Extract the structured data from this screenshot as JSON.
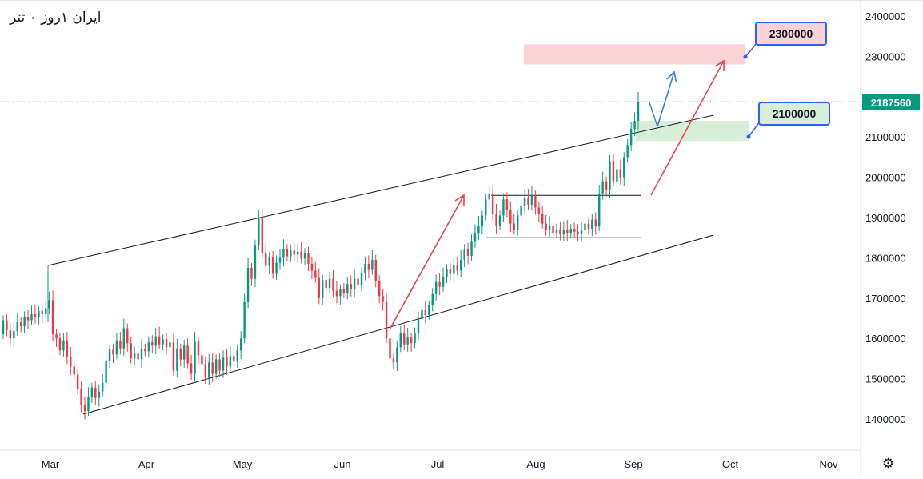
{
  "header": {
    "title": "ایران ۱روز ۰ تتر"
  },
  "price_label": "2187560",
  "callouts": {
    "target": "2300000",
    "support": "2100000"
  },
  "chart_data": {
    "type": "candlestick",
    "title": "ایران ۱روز ۰ تتر",
    "y_ticks": [
      1400000,
      1500000,
      1600000,
      1700000,
      1800000,
      1900000,
      2000000,
      2100000,
      2200000,
      2300000,
      2400000
    ],
    "y_tick_labels": [
      "1400000",
      "1500000",
      "1600000",
      "1700000",
      "1800000",
      "1900000",
      "2000000",
      "2100000",
      "2200000",
      "2300000",
      "2400000"
    ],
    "x_labels": [
      "Mar",
      "Apr",
      "May",
      "Jun",
      "Jul",
      "Aug",
      "Sep",
      "Oct",
      "Nov"
    ],
    "ylim": [
      1325000,
      2425000
    ],
    "last_price": 2187560,
    "grid": false,
    "colors": {
      "up": "#089981",
      "down": "#f23645",
      "arrow_red": "#e8434b",
      "arrow_blue": "#3a7bd5",
      "zone_red": "#fbd3d6",
      "zone_green": "#d7efd9"
    },
    "points": [
      [
        1610000,
        1645000
      ],
      [
        1645000,
        1620000
      ],
      [
        1620000,
        1600000
      ],
      [
        1600000,
        1618000
      ],
      [
        1618000,
        1640000
      ],
      [
        1640000,
        1630000
      ],
      [
        1630000,
        1652000
      ],
      [
        1652000,
        1645000
      ],
      [
        1645000,
        1660000
      ],
      [
        1660000,
        1652000
      ],
      [
        1652000,
        1668000
      ],
      [
        1668000,
        1660000
      ],
      [
        1660000,
        1675000
      ],
      [
        1675000,
        1695000
      ],
      [
        1695000,
        1610000
      ],
      [
        1610000,
        1600000
      ],
      [
        1600000,
        1570000
      ],
      [
        1570000,
        1595000
      ],
      [
        1595000,
        1555000
      ],
      [
        1555000,
        1530000
      ],
      [
        1530000,
        1510000
      ],
      [
        1510000,
        1475000
      ],
      [
        1475000,
        1435000
      ],
      [
        1435000,
        1420000
      ],
      [
        1420000,
        1455000
      ],
      [
        1455000,
        1478000
      ],
      [
        1478000,
        1452000
      ],
      [
        1452000,
        1468000
      ],
      [
        1468000,
        1490000
      ],
      [
        1490000,
        1545000
      ],
      [
        1545000,
        1572000
      ],
      [
        1572000,
        1560000
      ],
      [
        1560000,
        1595000
      ],
      [
        1595000,
        1575000
      ],
      [
        1575000,
        1625000
      ],
      [
        1625000,
        1588000
      ],
      [
        1588000,
        1550000
      ],
      [
        1550000,
        1562000
      ],
      [
        1562000,
        1548000
      ],
      [
        1548000,
        1575000
      ],
      [
        1575000,
        1568000
      ],
      [
        1568000,
        1590000
      ],
      [
        1590000,
        1582000
      ],
      [
        1582000,
        1605000
      ],
      [
        1605000,
        1585000
      ],
      [
        1585000,
        1598000
      ],
      [
        1598000,
        1578000
      ],
      [
        1578000,
        1590000
      ],
      [
        1590000,
        1520000
      ],
      [
        1520000,
        1575000
      ],
      [
        1575000,
        1548000
      ],
      [
        1548000,
        1582000
      ],
      [
        1582000,
        1538000
      ],
      [
        1538000,
        1512000
      ],
      [
        1512000,
        1592000
      ],
      [
        1592000,
        1558000
      ],
      [
        1558000,
        1536000
      ],
      [
        1536000,
        1502000
      ],
      [
        1502000,
        1540000
      ],
      [
        1540000,
        1512000
      ],
      [
        1512000,
        1548000
      ],
      [
        1548000,
        1520000
      ],
      [
        1520000,
        1552000
      ],
      [
        1552000,
        1530000
      ],
      [
        1530000,
        1556000
      ],
      [
        1556000,
        1545000
      ],
      [
        1545000,
        1570000
      ],
      [
        1570000,
        1600000
      ],
      [
        1600000,
        1690000
      ],
      [
        1690000,
        1775000
      ],
      [
        1775000,
        1748000
      ],
      [
        1748000,
        1830000
      ],
      [
        1830000,
        1900000
      ],
      [
        1900000,
        1812000
      ],
      [
        1812000,
        1780000
      ],
      [
        1780000,
        1802000
      ],
      [
        1802000,
        1760000
      ],
      [
        1760000,
        1788000
      ],
      [
        1788000,
        1800000
      ],
      [
        1800000,
        1822000
      ],
      [
        1822000,
        1804000
      ],
      [
        1804000,
        1818000
      ],
      [
        1818000,
        1808000
      ],
      [
        1808000,
        1815000
      ],
      [
        1815000,
        1798000
      ],
      [
        1798000,
        1812000
      ],
      [
        1812000,
        1785000
      ],
      [
        1785000,
        1768000
      ],
      [
        1768000,
        1750000
      ],
      [
        1750000,
        1700000
      ],
      [
        1700000,
        1745000
      ],
      [
        1745000,
        1725000
      ],
      [
        1725000,
        1748000
      ],
      [
        1748000,
        1718000
      ],
      [
        1718000,
        1705000
      ],
      [
        1705000,
        1722000
      ],
      [
        1722000,
        1712000
      ],
      [
        1712000,
        1735000
      ],
      [
        1735000,
        1722000
      ],
      [
        1722000,
        1748000
      ],
      [
        1748000,
        1732000
      ],
      [
        1732000,
        1762000
      ],
      [
        1762000,
        1785000
      ],
      [
        1785000,
        1770000
      ],
      [
        1770000,
        1795000
      ],
      [
        1795000,
        1742000
      ],
      [
        1742000,
        1705000
      ],
      [
        1705000,
        1690000
      ],
      [
        1690000,
        1600000
      ],
      [
        1600000,
        1550000
      ],
      [
        1550000,
        1540000
      ],
      [
        1540000,
        1578000
      ],
      [
        1578000,
        1612000
      ],
      [
        1612000,
        1585000
      ],
      [
        1585000,
        1602000
      ],
      [
        1602000,
        1588000
      ],
      [
        1588000,
        1612000
      ],
      [
        1612000,
        1648000
      ],
      [
        1648000,
        1670000
      ],
      [
        1670000,
        1658000
      ],
      [
        1658000,
        1682000
      ],
      [
        1682000,
        1710000
      ],
      [
        1710000,
        1740000
      ],
      [
        1740000,
        1728000
      ],
      [
        1728000,
        1752000
      ],
      [
        1752000,
        1772000
      ],
      [
        1772000,
        1760000
      ],
      [
        1760000,
        1782000
      ],
      [
        1782000,
        1768000
      ],
      [
        1768000,
        1795000
      ],
      [
        1795000,
        1822000
      ],
      [
        1822000,
        1805000
      ],
      [
        1805000,
        1840000
      ],
      [
        1840000,
        1862000
      ],
      [
        1862000,
        1880000
      ],
      [
        1880000,
        1905000
      ],
      [
        1905000,
        1945000
      ],
      [
        1945000,
        1960000
      ],
      [
        1960000,
        1910000
      ],
      [
        1910000,
        1880000
      ],
      [
        1880000,
        1905000
      ],
      [
        1905000,
        1945000
      ],
      [
        1945000,
        1920000
      ],
      [
        1920000,
        1885000
      ],
      [
        1885000,
        1870000
      ],
      [
        1870000,
        1905000
      ],
      [
        1905000,
        1928000
      ],
      [
        1928000,
        1950000
      ],
      [
        1950000,
        1932000
      ],
      [
        1932000,
        1955000
      ],
      [
        1955000,
        1925000
      ],
      [
        1925000,
        1910000
      ],
      [
        1910000,
        1885000
      ],
      [
        1885000,
        1870000
      ],
      [
        1870000,
        1880000
      ],
      [
        1880000,
        1862000
      ],
      [
        1862000,
        1870000
      ],
      [
        1870000,
        1858000
      ],
      [
        1858000,
        1870000
      ],
      [
        1870000,
        1862000
      ],
      [
        1862000,
        1872000
      ],
      [
        1872000,
        1865000
      ],
      [
        1865000,
        1860000
      ],
      [
        1860000,
        1868000
      ],
      [
        1868000,
        1885000
      ],
      [
        1885000,
        1872000
      ],
      [
        1872000,
        1895000
      ],
      [
        1895000,
        1878000
      ],
      [
        1878000,
        1960000
      ],
      [
        1960000,
        1990000
      ],
      [
        1990000,
        1970000
      ],
      [
        1970000,
        2040000
      ],
      [
        2040000,
        1990000
      ],
      [
        1990000,
        2020000
      ],
      [
        2020000,
        2000000
      ],
      [
        2000000,
        2050000
      ],
      [
        2050000,
        2080000
      ],
      [
        2080000,
        2120000
      ],
      [
        2120000,
        2140000
      ],
      [
        2140000,
        2187560
      ]
    ],
    "resistance_line": [
      [
        0,
        1780000
      ],
      [
        87,
        2160000
      ]
    ],
    "support_line": [
      [
        9,
        1415000
      ],
      [
        87,
        1860000
      ]
    ],
    "range_top": 1955000,
    "range_bottom": 1850000
  }
}
